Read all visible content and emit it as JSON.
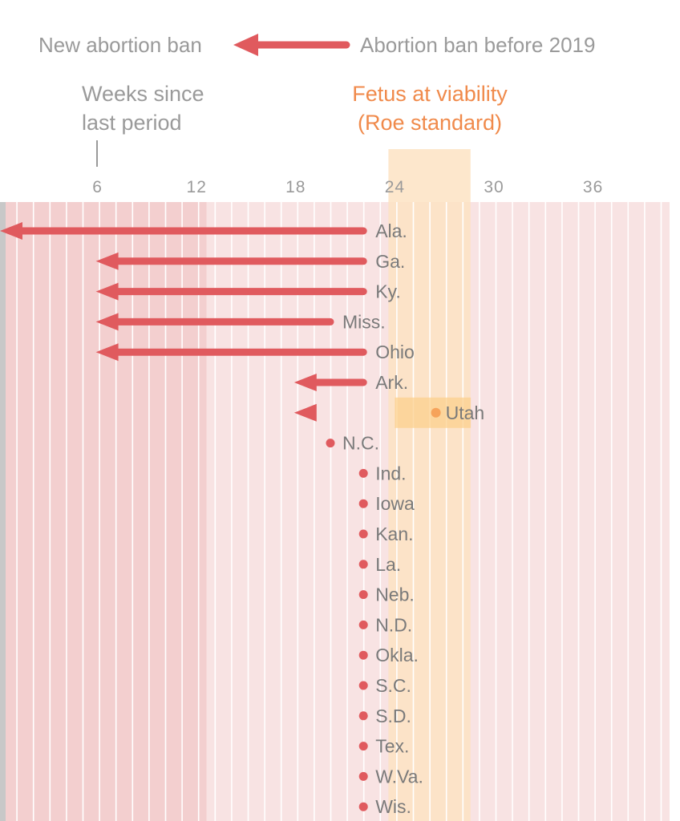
{
  "legend": {
    "new_ban": "New abortion ban",
    "old_ban": "Abortion ban before 2019"
  },
  "axis_header": {
    "line1": "Weeks since",
    "line2": "last period"
  },
  "viability": {
    "line1": "Fetus at viability",
    "line2": "(Roe standard)",
    "range_weeks": [
      24,
      28
    ]
  },
  "colors": {
    "arrow": "#e05a5e",
    "dot": "#e05a5e",
    "band_before_ban": "#f3cfcf",
    "band_after_ban": "#f8e3e3",
    "viability_band": "#fde3c3",
    "label": "#7a7a7a",
    "viability_text": "#f08a4b"
  },
  "chart_data": {
    "type": "arrow-dot",
    "title": "",
    "xlabel": "Weeks since last period",
    "x_ticks": [
      6,
      12,
      18,
      24,
      30,
      36
    ],
    "xlim": [
      0,
      40
    ],
    "series": [
      {
        "state": "Ala.",
        "before_2019_weeks": 22,
        "new_ban_weeks": 0
      },
      {
        "state": "Ga.",
        "before_2019_weeks": 22,
        "new_ban_weeks": 6
      },
      {
        "state": "Ky.",
        "before_2019_weeks": 22,
        "new_ban_weeks": 6
      },
      {
        "state": "Miss.",
        "before_2019_weeks": 20,
        "new_ban_weeks": 6
      },
      {
        "state": "Ohio",
        "before_2019_weeks": 22,
        "new_ban_weeks": 6
      },
      {
        "state": "Ark.",
        "before_2019_weeks": 22,
        "new_ban_weeks": 18
      },
      {
        "state": "Utah",
        "before_2019_weeks": 26,
        "new_ban_weeks": 18
      },
      {
        "state": "N.C.",
        "before_2019_weeks": 20,
        "new_ban_weeks": null
      },
      {
        "state": "Ind.",
        "before_2019_weeks": 22,
        "new_ban_weeks": null
      },
      {
        "state": "Iowa",
        "before_2019_weeks": 22,
        "new_ban_weeks": null
      },
      {
        "state": "Kan.",
        "before_2019_weeks": 22,
        "new_ban_weeks": null
      },
      {
        "state": "La.",
        "before_2019_weeks": 22,
        "new_ban_weeks": null
      },
      {
        "state": "Neb.",
        "before_2019_weeks": 22,
        "new_ban_weeks": null
      },
      {
        "state": "N.D.",
        "before_2019_weeks": 22,
        "new_ban_weeks": null
      },
      {
        "state": "Okla.",
        "before_2019_weeks": 22,
        "new_ban_weeks": null
      },
      {
        "state": "S.C.",
        "before_2019_weeks": 22,
        "new_ban_weeks": null
      },
      {
        "state": "S.D.",
        "before_2019_weeks": 22,
        "new_ban_weeks": null
      },
      {
        "state": "Tex.",
        "before_2019_weeks": 22,
        "new_ban_weeks": null
      },
      {
        "state": "W.Va.",
        "before_2019_weeks": 22,
        "new_ban_weeks": null
      },
      {
        "state": "Wis.",
        "before_2019_weeks": 22,
        "new_ban_weeks": null
      }
    ]
  }
}
